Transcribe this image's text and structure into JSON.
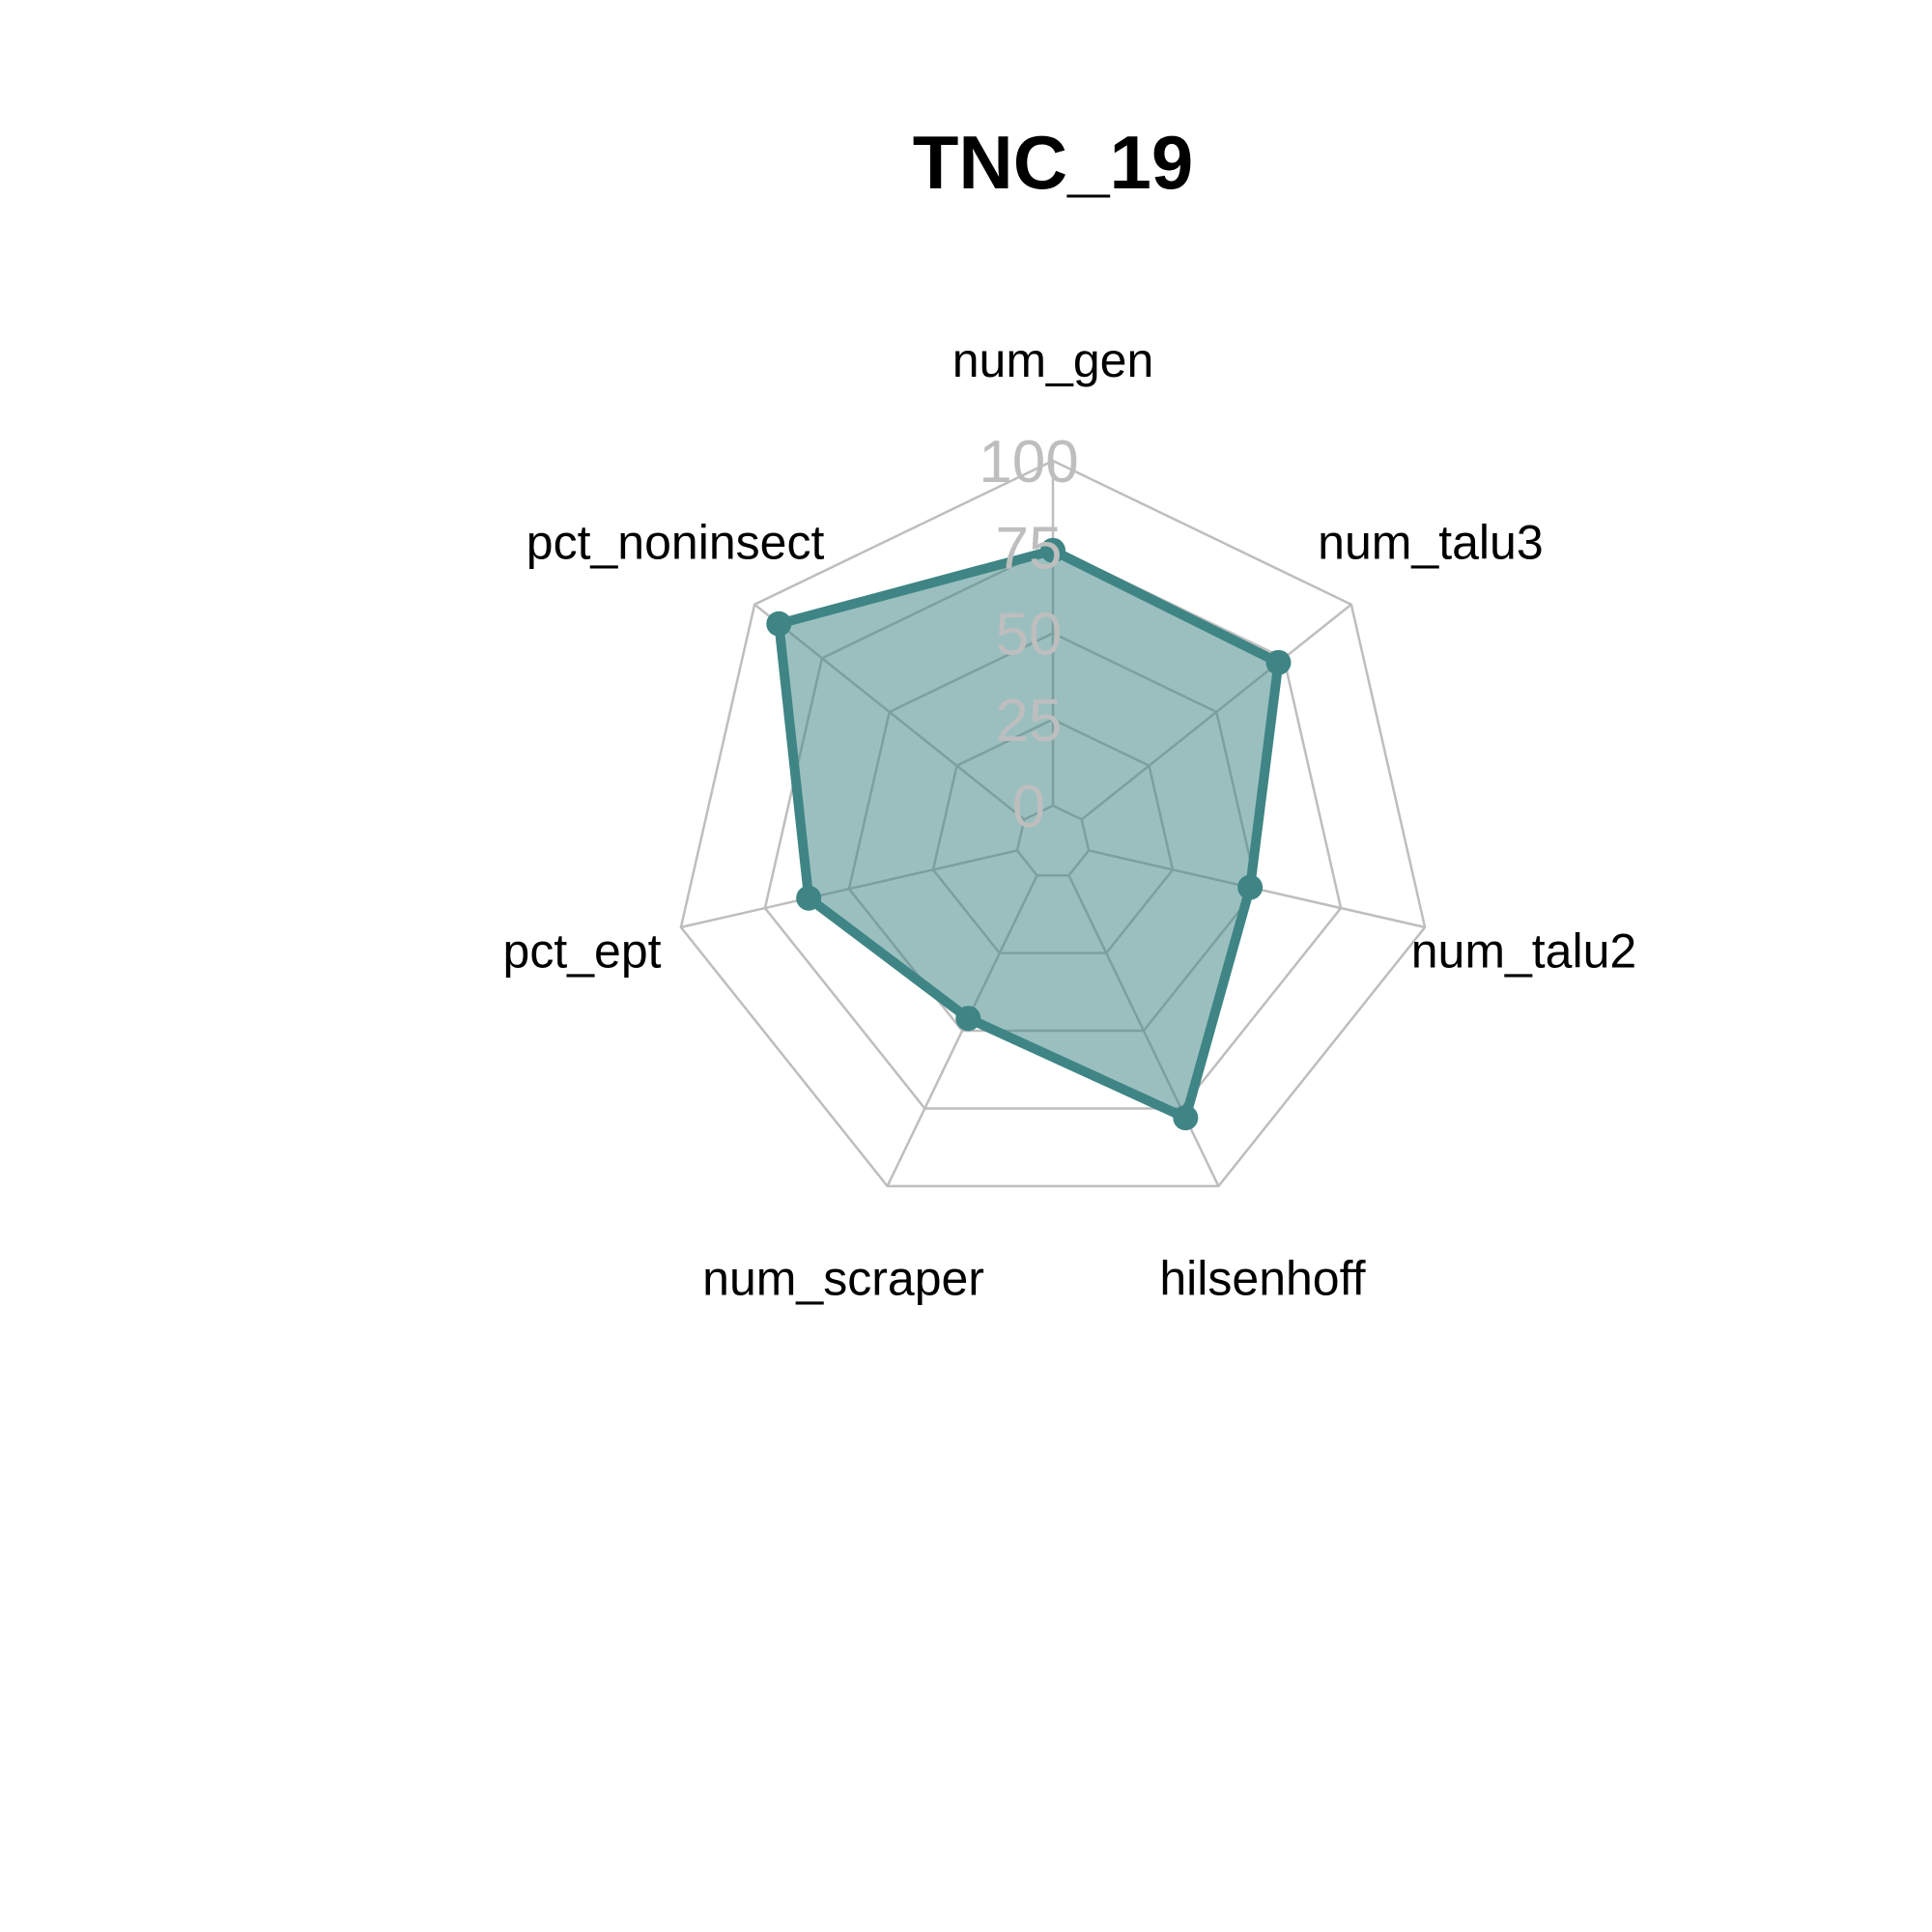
{
  "chart_data": {
    "type": "radar",
    "title": "TNC_19",
    "categories": [
      "num_gen",
      "num_talu3",
      "num_talu2",
      "hilsenhoff",
      "num_scraper",
      "pct_ept",
      "pct_noninsect"
    ],
    "series": [
      {
        "values": [
          74,
          73,
          48,
          78,
          46,
          62,
          91
        ]
      }
    ],
    "rlim": [
      0,
      100
    ],
    "ticks": [
      "0",
      "25",
      "50",
      "75",
      "100"
    ],
    "tick_values": [
      0,
      25,
      50,
      75,
      100
    ],
    "grid": true,
    "colors": {
      "line": "#3f8585",
      "fill": "#3f8585",
      "fill_opacity": 0.52,
      "grid": "#bebebe"
    }
  }
}
